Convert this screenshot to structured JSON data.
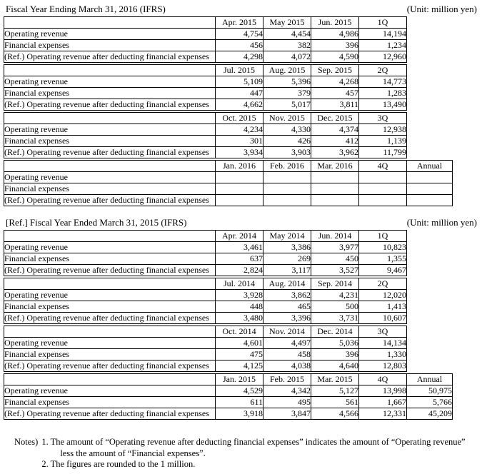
{
  "tables": [
    {
      "title": "Fiscal Year Ending March 31, 2016 (IFRS)",
      "unit_label": "(Unit: million yen)",
      "row_labels": [
        "Operating revenue",
        "Financial expenses",
        "(Ref.) Operating revenue after deducting financial expenses"
      ],
      "blocks": [
        {
          "columns": [
            "Apr. 2015",
            "May 2015",
            "Jun. 2015",
            "1Q"
          ],
          "rows": [
            [
              "4,754",
              "4,454",
              "4,986",
              "14,194"
            ],
            [
              "456",
              "382",
              "396",
              "1,234"
            ],
            [
              "4,298",
              "4,072",
              "4,590",
              "12,960"
            ]
          ]
        },
        {
          "columns": [
            "Jul. 2015",
            "Aug. 2015",
            "Sep. 2015",
            "2Q"
          ],
          "rows": [
            [
              "5,109",
              "5,396",
              "4,268",
              "14,773"
            ],
            [
              "447",
              "379",
              "457",
              "1,283"
            ],
            [
              "4,662",
              "5,017",
              "3,811",
              "13,490"
            ]
          ]
        },
        {
          "columns": [
            "Oct. 2015",
            "Nov. 2015",
            "Dec. 2015",
            "3Q"
          ],
          "highlight_column": 2,
          "rows": [
            [
              "4,234",
              "4,330",
              "4,374",
              "12,938"
            ],
            [
              "301",
              "426",
              "412",
              "1,139"
            ],
            [
              "3,934",
              "3,903",
              "3,962",
              "11,799"
            ]
          ]
        },
        {
          "columns": [
            "Jan. 2016",
            "Feb. 2016",
            "Mar. 2016",
            "4Q",
            "Annual"
          ],
          "rows": [
            [
              "",
              "",
              "",
              "",
              ""
            ],
            [
              "",
              "",
              "",
              "",
              ""
            ],
            [
              "",
              "",
              "",
              "",
              ""
            ]
          ]
        }
      ]
    },
    {
      "title": "[Ref.] Fiscal Year Ended March 31, 2015 (IFRS)",
      "unit_label": "(Unit: million yen)",
      "row_labels": [
        "Operating revenue",
        "Financial expenses",
        "(Ref.) Operating revenue after deducting financial expenses"
      ],
      "blocks": [
        {
          "columns": [
            "Apr. 2014",
            "May 2014",
            "Jun. 2014",
            "1Q"
          ],
          "rows": [
            [
              "3,461",
              "3,386",
              "3,977",
              "10,823"
            ],
            [
              "637",
              "269",
              "450",
              "1,355"
            ],
            [
              "2,824",
              "3,117",
              "3,527",
              "9,467"
            ]
          ]
        },
        {
          "columns": [
            "Jul. 2014",
            "Aug. 2014",
            "Sep. 2014",
            "2Q"
          ],
          "rows": [
            [
              "3,928",
              "3,862",
              "4,231",
              "12,020"
            ],
            [
              "448",
              "465",
              "500",
              "1,413"
            ],
            [
              "3,480",
              "3,396",
              "3,731",
              "10,607"
            ]
          ]
        },
        {
          "columns": [
            "Oct. 2014",
            "Nov. 2014",
            "Dec. 2014",
            "3Q"
          ],
          "rows": [
            [
              "4,601",
              "4,497",
              "5,036",
              "14,134"
            ],
            [
              "475",
              "458",
              "396",
              "1,330"
            ],
            [
              "4,125",
              "4,038",
              "4,640",
              "12,803"
            ]
          ]
        },
        {
          "columns": [
            "Jan. 2015",
            "Feb. 2015",
            "Mar. 2015",
            "4Q",
            "Annual"
          ],
          "rows": [
            [
              "4,529",
              "4,342",
              "5,127",
              "13,998",
              "50,975"
            ],
            [
              "611",
              "495",
              "561",
              "1,667",
              "5,766"
            ],
            [
              "3,918",
              "3,847",
              "4,566",
              "12,331",
              "45,209"
            ]
          ]
        }
      ]
    }
  ],
  "notes": {
    "label": "Notes)",
    "items": [
      {
        "lines": [
          "1. The amount of “Operating revenue after deducting financial expenses” indicates the amount of “Operating revenue”",
          "less the amount of “Financial expenses”."
        ]
      },
      {
        "lines": [
          "2. The figures are rounded to the 1 million."
        ]
      }
    ]
  }
}
